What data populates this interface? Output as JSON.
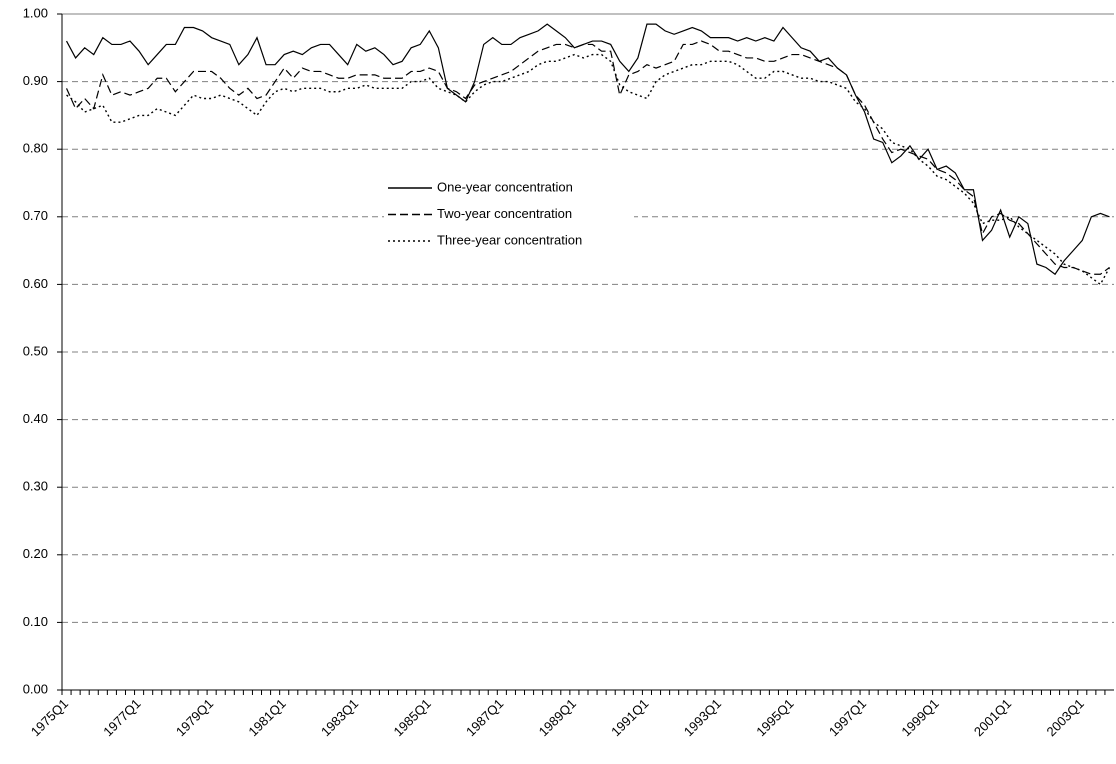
{
  "chart_data": {
    "type": "line",
    "categories": [
      "1975Q1",
      null,
      null,
      null,
      null,
      null,
      null,
      null,
      "1977Q1",
      null,
      null,
      null,
      null,
      null,
      null,
      null,
      "1979Q1",
      null,
      null,
      null,
      null,
      null,
      null,
      null,
      "1981Q1",
      null,
      null,
      null,
      null,
      null,
      null,
      null,
      "1983Q1",
      null,
      null,
      null,
      null,
      null,
      null,
      null,
      "1985Q1",
      null,
      null,
      null,
      null,
      null,
      null,
      null,
      "1987Q1",
      null,
      null,
      null,
      null,
      null,
      null,
      null,
      "1989Q1",
      null,
      null,
      null,
      null,
      null,
      null,
      null,
      "1991Q1",
      null,
      null,
      null,
      null,
      null,
      null,
      null,
      "1993Q1",
      null,
      null,
      null,
      null,
      null,
      null,
      null,
      "1995Q1",
      null,
      null,
      null,
      null,
      null,
      null,
      null,
      "1997Q1",
      null,
      null,
      null,
      null,
      null,
      null,
      null,
      "1999Q1",
      null,
      null,
      null,
      null,
      null,
      null,
      null,
      "2001Q1",
      null,
      null,
      null,
      null,
      null,
      null,
      null,
      "2003Q1",
      null,
      null,
      null
    ],
    "series": [
      {
        "name": "One-year concentration",
        "color": "#000000",
        "linestyle": "solid",
        "values": [
          0.96,
          0.935,
          0.95,
          0.94,
          0.965,
          0.955,
          0.955,
          0.96,
          0.945,
          0.925,
          0.94,
          0.955,
          0.955,
          0.98,
          0.98,
          0.975,
          0.965,
          0.96,
          0.955,
          0.925,
          0.94,
          0.965,
          0.925,
          0.925,
          0.94,
          0.945,
          0.94,
          0.95,
          0.955,
          0.955,
          0.94,
          0.925,
          0.955,
          0.945,
          0.95,
          0.94,
          0.925,
          0.93,
          0.95,
          0.955,
          0.975,
          0.95,
          0.89,
          0.88,
          0.87,
          0.9,
          0.955,
          0.965,
          0.955,
          0.955,
          0.965,
          0.97,
          0.975,
          0.985,
          0.975,
          0.965,
          0.95,
          0.955,
          0.96,
          0.96,
          0.955,
          0.93,
          0.915,
          0.935,
          0.985,
          0.985,
          0.975,
          0.97,
          0.975,
          0.98,
          0.975,
          0.965,
          0.965,
          0.965,
          0.96,
          0.965,
          0.96,
          0.965,
          0.96,
          0.98,
          0.965,
          0.95,
          0.945,
          0.93,
          0.935,
          0.92,
          0.91,
          0.88,
          0.855,
          0.815,
          0.81,
          0.78,
          0.79,
          0.805,
          0.785,
          0.8,
          0.77,
          0.775,
          0.765,
          0.74,
          0.74,
          0.665,
          0.68,
          0.71,
          0.67,
          0.7,
          0.69,
          0.63,
          0.625,
          0.615,
          0.635,
          0.65,
          0.665,
          0.7,
          0.705,
          0.7
        ]
      },
      {
        "name": "Two-year concentration",
        "color": "#000000",
        "linestyle": "dashed",
        "values": [
          0.89,
          0.86,
          0.875,
          0.86,
          0.91,
          0.88,
          0.885,
          0.88,
          0.885,
          0.89,
          0.905,
          0.905,
          0.885,
          0.9,
          0.915,
          0.915,
          0.915,
          0.905,
          0.89,
          0.88,
          0.89,
          0.875,
          0.88,
          0.9,
          0.92,
          0.905,
          0.92,
          0.915,
          0.915,
          0.91,
          0.905,
          0.905,
          0.91,
          0.91,
          0.91,
          0.905,
          0.905,
          0.905,
          0.915,
          0.915,
          0.92,
          0.915,
          0.89,
          0.885,
          0.875,
          0.895,
          0.9,
          0.905,
          0.91,
          0.915,
          0.925,
          0.935,
          0.945,
          0.95,
          0.955,
          0.955,
          0.95,
          0.955,
          0.955,
          0.945,
          0.945,
          0.88,
          0.91,
          0.915,
          0.925,
          0.92,
          0.925,
          0.93,
          0.955,
          0.955,
          0.96,
          0.955,
          0.945,
          0.945,
          0.94,
          0.935,
          0.935,
          0.93,
          0.93,
          0.935,
          0.94,
          0.94,
          0.935,
          0.93,
          0.925,
          0.92,
          0.91,
          0.88,
          0.865,
          0.84,
          0.815,
          0.795,
          0.8,
          0.795,
          0.79,
          0.785,
          0.77,
          0.765,
          0.755,
          0.74,
          0.73,
          0.675,
          0.7,
          0.705,
          0.695,
          0.69,
          0.675,
          0.66,
          0.645,
          0.63,
          0.625,
          0.625,
          0.62,
          0.615,
          0.615,
          0.625
        ]
      },
      {
        "name": "Three-year concentration",
        "color": "#000000",
        "linestyle": "dotted",
        "values": [
          0.88,
          0.87,
          0.855,
          0.86,
          0.865,
          0.84,
          0.84,
          0.845,
          0.85,
          0.85,
          0.86,
          0.855,
          0.85,
          0.865,
          0.88,
          0.875,
          0.875,
          0.88,
          0.875,
          0.87,
          0.86,
          0.85,
          0.87,
          0.885,
          0.89,
          0.885,
          0.89,
          0.89,
          0.89,
          0.885,
          0.885,
          0.89,
          0.89,
          0.895,
          0.89,
          0.89,
          0.89,
          0.89,
          0.9,
          0.9,
          0.905,
          0.89,
          0.885,
          0.88,
          0.87,
          0.885,
          0.895,
          0.9,
          0.9,
          0.905,
          0.91,
          0.915,
          0.925,
          0.93,
          0.93,
          0.935,
          0.94,
          0.935,
          0.94,
          0.94,
          0.93,
          0.895,
          0.885,
          0.88,
          0.875,
          0.9,
          0.91,
          0.915,
          0.92,
          0.925,
          0.925,
          0.93,
          0.93,
          0.93,
          0.925,
          0.915,
          0.905,
          0.905,
          0.915,
          0.915,
          0.91,
          0.905,
          0.905,
          0.9,
          0.9,
          0.895,
          0.89,
          0.87,
          0.86,
          0.84,
          0.83,
          0.81,
          0.805,
          0.8,
          0.785,
          0.775,
          0.76,
          0.755,
          0.745,
          0.735,
          0.72,
          0.69,
          0.695,
          0.695,
          0.7,
          0.685,
          0.675,
          0.665,
          0.655,
          0.645,
          0.63,
          0.625,
          0.62,
          0.61,
          0.6,
          0.625
        ]
      }
    ],
    "ylim": [
      0,
      1
    ],
    "yticks": [
      {
        "value": 0,
        "label": "0.00"
      },
      {
        "value": 0.1,
        "label": "0.10"
      },
      {
        "value": 0.2,
        "label": "0.20"
      },
      {
        "value": 0.3,
        "label": "0.30"
      },
      {
        "value": 0.4,
        "label": "0.40"
      },
      {
        "value": 0.5,
        "label": "0.50"
      },
      {
        "value": 0.6,
        "label": "0.60"
      },
      {
        "value": 0.7,
        "label": "0.70"
      },
      {
        "value": 0.8,
        "label": "0.80"
      },
      {
        "value": 0.9,
        "label": "0.90"
      },
      {
        "value": 1,
        "label": "1.00"
      }
    ],
    "grid": true,
    "legend": "center"
  }
}
